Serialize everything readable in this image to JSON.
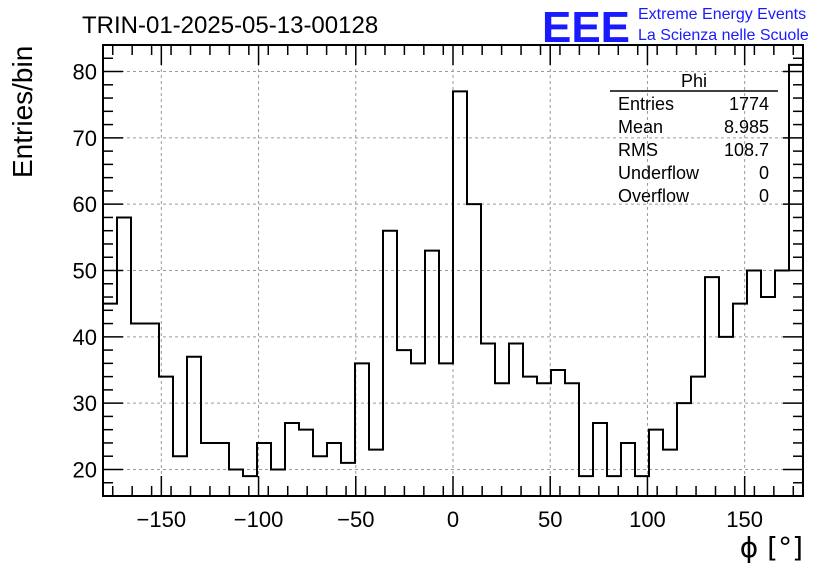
{
  "header": {
    "title": "TRIN-01-2025-05-13-00128",
    "logo": "EEE",
    "brand_line1": "Extreme Energy Events",
    "brand_line2": "La Scienza nelle Scuole"
  },
  "colors": {
    "brand": "#1a1aff",
    "line": "#000000",
    "grid": "#9a9a9a"
  },
  "stats": {
    "title": "Phi",
    "rows": [
      {
        "label": "Entries",
        "value": "1774"
      },
      {
        "label": "Mean",
        "value": "8.985"
      },
      {
        "label": "RMS",
        "value": "108.7"
      },
      {
        "label": "Underflow",
        "value": "0"
      },
      {
        "label": "Overflow",
        "value": "0"
      }
    ]
  },
  "chart_data": {
    "type": "histogram",
    "xlabel": "ϕ [°]",
    "ylabel": "Entries/bin",
    "xlim": [
      -180,
      180
    ],
    "ylim": [
      16,
      84
    ],
    "grid": true,
    "bin_width": 7.5,
    "x_ticks": [
      -150,
      -100,
      -50,
      0,
      50,
      100,
      150
    ],
    "x_tick_labels": [
      "−150",
      "−100",
      "−50",
      "0",
      "50",
      "100",
      "150"
    ],
    "y_ticks": [
      20,
      30,
      40,
      50,
      60,
      70,
      80
    ],
    "y_tick_labels": [
      "20",
      "30",
      "40",
      "50",
      "60",
      "70",
      "80"
    ],
    "values": [
      45,
      58,
      42,
      42,
      34,
      22,
      37,
      24,
      24,
      20,
      19,
      24,
      20,
      27,
      26,
      22,
      24,
      21,
      36,
      23,
      56,
      38,
      36,
      53,
      36,
      77,
      60,
      39,
      33,
      39,
      34,
      33,
      35,
      33,
      19,
      27,
      19,
      24,
      19,
      26,
      23,
      30,
      34,
      49,
      40,
      45,
      50,
      46,
      50,
      81
    ]
  }
}
